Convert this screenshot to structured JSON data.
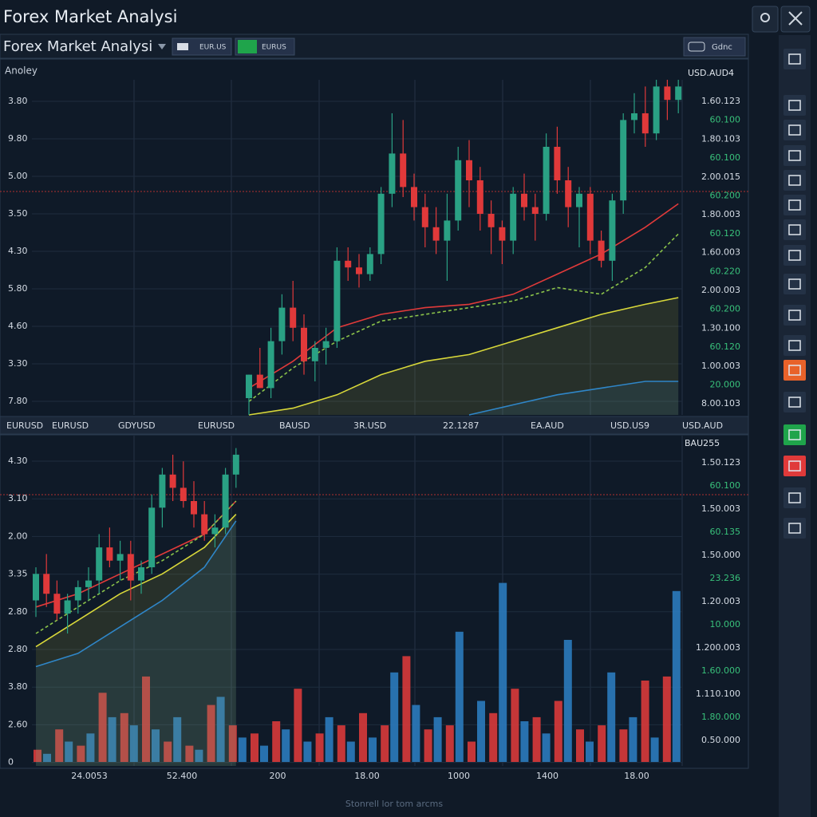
{
  "header": {
    "title": "Forex Market Analysi"
  },
  "toolbar": {
    "title": "Forex Market Analysi",
    "buttons": [
      "EUR.US",
      "EURUS"
    ],
    "right_button": "Gdnc"
  },
  "symbol_bar": [
    "EURUSD",
    "EURUSD",
    "GDYUSD",
    "EURUSD",
    "BAUSD",
    "3R.USD",
    "22.1287",
    "EA.AUD",
    "USD.US9",
    "USD.AUD"
  ],
  "top_panel": {
    "label": "Anoley",
    "pair": "USD.AUD4",
    "left_labels": [
      "3.80",
      "9.80",
      "5.00",
      "3.50",
      "4.30",
      "5.80",
      "4.60",
      "3.30",
      "7.80"
    ],
    "right_labels": [
      "1.60.123",
      "60.100",
      "1.80.103",
      "60.100",
      "2.00.015",
      "60.200",
      "1.80.003",
      "60.120",
      "1.60.003",
      "60.220",
      "2.00.003",
      "60.200",
      "1.30.100",
      "60.120",
      "1.00.003",
      "20.000",
      "8.00.103"
    ],
    "chart": {
      "type": "candlestick",
      "ylim": [
        0,
        100
      ],
      "up_color": "#2aa184",
      "down_color": "#e0393a",
      "ohlc": [
        [
          5,
          12,
          0,
          12
        ],
        [
          12,
          20,
          8,
          8
        ],
        [
          8,
          26,
          5,
          22
        ],
        [
          22,
          36,
          18,
          32
        ],
        [
          32,
          40,
          22,
          26
        ],
        [
          26,
          30,
          12,
          16
        ],
        [
          16,
          22,
          10,
          20
        ],
        [
          20,
          26,
          15,
          22
        ],
        [
          22,
          50,
          20,
          46
        ],
        [
          46,
          50,
          40,
          44
        ],
        [
          44,
          48,
          38,
          42
        ],
        [
          42,
          50,
          40,
          48
        ],
        [
          48,
          68,
          45,
          66
        ],
        [
          66,
          90,
          62,
          78
        ],
        [
          78,
          88,
          65,
          68
        ],
        [
          68,
          72,
          58,
          62
        ],
        [
          62,
          66,
          50,
          56
        ],
        [
          56,
          62,
          48,
          52
        ],
        [
          52,
          66,
          40,
          58
        ],
        [
          58,
          80,
          55,
          76
        ],
        [
          76,
          82,
          62,
          70
        ],
        [
          70,
          74,
          55,
          60
        ],
        [
          60,
          64,
          48,
          56
        ],
        [
          56,
          58,
          45,
          52
        ],
        [
          52,
          68,
          48,
          66
        ],
        [
          66,
          72,
          58,
          62
        ],
        [
          62,
          66,
          52,
          60
        ],
        [
          60,
          84,
          58,
          80
        ],
        [
          80,
          86,
          66,
          70
        ],
        [
          70,
          74,
          56,
          62
        ],
        [
          62,
          68,
          50,
          66
        ],
        [
          66,
          68,
          48,
          52
        ],
        [
          52,
          55,
          44,
          46
        ],
        [
          46,
          66,
          40,
          64
        ],
        [
          64,
          90,
          60,
          88
        ],
        [
          88,
          96,
          84,
          90
        ],
        [
          90,
          98,
          80,
          84
        ],
        [
          84,
          100,
          82,
          98
        ],
        [
          98,
          100,
          88,
          94
        ],
        [
          94,
          100,
          90,
          98
        ]
      ],
      "x": [
        0,
        4,
        8,
        12,
        16,
        20,
        24,
        28,
        32,
        36,
        39
      ],
      "series": [
        {
          "color": "#e03a3a",
          "values": [
            8,
            16,
            26,
            30,
            32,
            33,
            36,
            42,
            48,
            56,
            63
          ]
        },
        {
          "color": "#8bc34a",
          "dashed": true,
          "values": [
            4,
            14,
            22,
            28,
            30,
            32,
            34,
            38,
            36,
            44,
            54
          ]
        },
        {
          "color": "#d8d83a",
          "fill": true,
          "values": [
            0,
            2,
            6,
            12,
            16,
            18,
            22,
            26,
            30,
            33,
            35
          ]
        },
        {
          "color": "#2f86c8",
          "fill": true,
          "values": [
            null,
            null,
            null,
            null,
            null,
            0,
            3,
            6,
            8,
            10,
            10
          ]
        }
      ]
    }
  },
  "bottom_panel": {
    "pair": "BAU255",
    "left_labels": [
      "4.30",
      "3.10",
      "2.00",
      "3.35",
      "2.80",
      "2.80",
      "3.80",
      "2.60",
      "0"
    ],
    "right_labels": [
      "1.50.123",
      "60.100",
      "1.50.003",
      "60.135",
      "1.50.000",
      "23.236",
      "1.20.003",
      "10.000",
      "1.200.003",
      "1.60.000",
      "1.110.100",
      "1.80.000",
      "0.50.000"
    ],
    "x_labels": [
      "24.0053",
      "52.400",
      "200",
      "18.00",
      "1000",
      "1400",
      "18.00"
    ],
    "chart": {
      "type": "candlestick",
      "ylim": [
        0,
        100
      ],
      "up_color": "#2aa184",
      "down_color": "#e0393a",
      "ohlc": [
        [
          50,
          60,
          45,
          58
        ],
        [
          58,
          64,
          48,
          52
        ],
        [
          52,
          56,
          44,
          46
        ],
        [
          46,
          52,
          40,
          50
        ],
        [
          50,
          56,
          46,
          54
        ],
        [
          54,
          60,
          50,
          56
        ],
        [
          56,
          70,
          52,
          66
        ],
        [
          66,
          72,
          60,
          62
        ],
        [
          62,
          68,
          56,
          64
        ],
        [
          64,
          68,
          50,
          56
        ],
        [
          56,
          62,
          52,
          60
        ],
        [
          60,
          82,
          58,
          78
        ],
        [
          78,
          90,
          72,
          88
        ],
        [
          88,
          94,
          80,
          84
        ],
        [
          84,
          92,
          78,
          80
        ],
        [
          80,
          86,
          72,
          76
        ],
        [
          76,
          80,
          68,
          70
        ],
        [
          70,
          76,
          66,
          72
        ],
        [
          72,
          90,
          70,
          88
        ],
        [
          88,
          96,
          84,
          94
        ]
      ],
      "x": [
        0,
        4,
        8,
        12,
        16,
        19
      ],
      "series": [
        {
          "color": "#e03a3a",
          "values": [
            48,
            52,
            58,
            64,
            70,
            80
          ]
        },
        {
          "color": "#8bc34a",
          "dashed": true,
          "values": [
            40,
            48,
            56,
            62,
            70,
            80
          ]
        },
        {
          "color": "#d8d83a",
          "fill": true,
          "values": [
            36,
            44,
            52,
            58,
            66,
            76
          ]
        },
        {
          "color": "#2f86c8",
          "fill": true,
          "values": [
            30,
            34,
            42,
            50,
            60,
            74
          ]
        }
      ]
    },
    "volume": {
      "type": "bar",
      "ylim": [
        0,
        100
      ],
      "series": [
        {
          "color": "#d93a3a",
          "values": [
            6,
            16,
            8,
            34,
            24,
            42,
            10,
            8,
            28,
            18,
            14,
            20,
            36,
            14,
            18,
            24,
            18,
            52,
            16,
            18,
            10,
            24,
            36,
            22,
            30,
            16,
            18,
            16,
            40,
            42
          ]
        },
        {
          "color": "#2b7bbd",
          "values": [
            4,
            10,
            14,
            22,
            18,
            16,
            22,
            6,
            32,
            12,
            8,
            16,
            10,
            22,
            10,
            12,
            44,
            28,
            22,
            64,
            30,
            88,
            20,
            14,
            60,
            10,
            44,
            22,
            12,
            84
          ]
        }
      ]
    }
  },
  "footer": "Stonrell lor tom arcms"
}
